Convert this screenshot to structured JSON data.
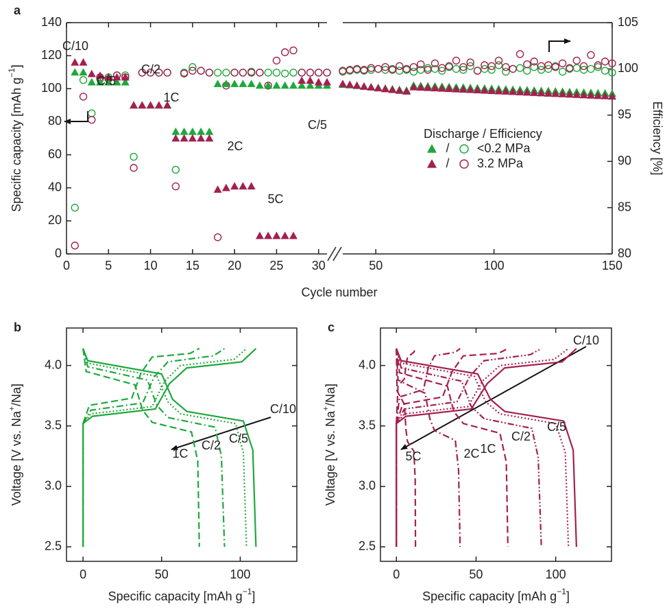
{
  "chart_data": [
    {
      "type": "scatter",
      "panel": "a",
      "xlabel": [
        "Cycle number"
      ],
      "ylabel": [
        "Specific capacity [mAh g",
        "−1",
        "]"
      ],
      "y2label": [
        "Efficiency [%]"
      ],
      "xlim_segments": [
        [
          0,
          31
        ],
        [
          36,
          150
        ]
      ],
      "xticks": [
        0,
        5,
        10,
        15,
        20,
        25,
        30,
        50,
        100,
        150
      ],
      "ylim": [
        0,
        140
      ],
      "yticks": [
        0,
        20,
        40,
        60,
        80,
        100,
        120,
        140
      ],
      "y2lim": [
        80,
        105
      ],
      "y2ticks": [
        80,
        85,
        90,
        95,
        100,
        105
      ],
      "legend_title": "Discharge / Efficiency",
      "legend_separator": "/",
      "annotations": [
        "C/10",
        "C/5",
        "C/2",
        "1C",
        "2C",
        "5C",
        "C/5"
      ],
      "x": [
        1,
        2,
        3,
        4,
        5,
        6,
        7,
        8,
        9,
        10,
        11,
        12,
        13,
        14,
        15,
        16,
        17,
        18,
        19,
        20,
        21,
        22,
        23,
        24,
        25,
        26,
        27,
        28,
        29,
        30,
        31,
        36,
        39,
        42,
        45,
        48,
        51,
        54,
        57,
        60,
        63,
        66,
        69,
        72,
        75,
        78,
        81,
        84,
        87,
        90,
        93,
        96,
        99,
        102,
        105,
        108,
        111,
        114,
        117,
        120,
        123,
        126,
        129,
        132,
        135,
        138,
        141,
        144,
        147,
        150
      ],
      "series": [
        {
          "name": "<0.2 MPa",
          "color": "#1ea83c",
          "discharge": [
            110,
            110,
            104,
            104,
            104,
            104,
            104,
            90,
            90,
            90,
            90,
            90,
            74,
            74,
            74,
            74,
            74,
            103,
            103,
            103,
            103,
            103,
            102,
            102,
            102,
            102,
            102,
            102,
            102,
            102,
            102,
            102.5,
            102.2,
            101.8,
            101.4,
            101,
            100.6,
            100.2,
            99.8,
            99.4,
            99.0,
            102,
            101.8,
            101.6,
            101.5,
            101.3,
            101.1,
            100.9,
            100.8,
            100.6,
            100.4,
            100.2,
            100.1,
            99.9,
            99.7,
            99.5,
            99.4,
            99.2,
            99,
            98.8,
            98.7,
            98.5,
            98.3,
            98.1,
            98,
            97.8,
            97.6,
            97.4,
            97.3,
            97.1
          ],
          "efficiency": [
            85.0,
            98.8,
            95.2,
            98.9,
            99.1,
            99.3,
            99.3,
            90.5,
            99.6,
            99.6,
            99.6,
            99.6,
            89.1,
            99.6,
            100.2,
            99.8,
            99.6,
            99.6,
            99.6,
            99.6,
            99.6,
            99.7,
            99.6,
            99.6,
            99.6,
            99.5,
            99.6,
            99.6,
            99.6,
            99.6,
            99.6,
            99.7,
            99.8,
            99.9,
            99.8,
            99.9,
            100,
            99.9,
            100,
            99.8,
            99.9,
            99.7,
            99.9,
            100.1,
            100,
            99.8,
            100.2,
            100,
            99.9,
            100.3,
            99.8,
            100,
            99.9,
            100.4,
            99.7,
            100,
            100.1,
            99.8,
            100.2,
            99.9,
            100,
            100.3,
            99.7,
            100,
            100.1,
            99.9,
            100,
            100.2,
            99.8,
            99.6
          ]
        },
        {
          "name": "3.2 MPa",
          "color": "#a3204f",
          "discharge": [
            116,
            116,
            109,
            108,
            107,
            107,
            107,
            90,
            90,
            90,
            90,
            90,
            70,
            70,
            70,
            70,
            70,
            39,
            40,
            41,
            41,
            41,
            11,
            11,
            11,
            11,
            11,
            105,
            105,
            104,
            104,
            103,
            102.5,
            102,
            101.4,
            100.9,
            100.4,
            99.9,
            99.4,
            98.9,
            98.4,
            101,
            100.8,
            100.6,
            100.4,
            100.2,
            100,
            99.8,
            99.6,
            99.4,
            99.2,
            99,
            98.8,
            98.6,
            98.4,
            98.2,
            98,
            97.8,
            97.6,
            97.4,
            97.2,
            97,
            96.8,
            96.6,
            96.4,
            96.2,
            96,
            95.8,
            95.6,
            95.4
          ],
          "efficiency": [
            80.9,
            97.0,
            94.5,
            99.1,
            98.9,
            99.3,
            99.1,
            89.3,
            99.6,
            99.6,
            99.6,
            99.6,
            87.3,
            99.5,
            99.8,
            99.8,
            99.6,
            81.8,
            98.2,
            99.6,
            99.6,
            99.6,
            99.6,
            98.2,
            100.9,
            101.8,
            102.0,
            99.6,
            99.6,
            99.6,
            99.6,
            99.8,
            99.9,
            100,
            99.9,
            100.1,
            100,
            100.2,
            99.9,
            100.3,
            100,
            100.2,
            100.5,
            99.9,
            100.6,
            100.1,
            100.3,
            100.9,
            100.2,
            100.7,
            99.8,
            100.4,
            100.3,
            100.9,
            100.2,
            100,
            101.6,
            100.5,
            100.8,
            100.3,
            100.4,
            100.2,
            100.6,
            100.1,
            100.9,
            100.3,
            101.5,
            100.4,
            100.8,
            100.6
          ]
        }
      ]
    },
    {
      "type": "line",
      "panel": "b",
      "color": "#1ea83c",
      "xlabel": [
        "Specific capacity [mAh g",
        "−1",
        "]"
      ],
      "ylabel": [
        "Voltage [V vs. Na",
        "+",
        "/Na]"
      ],
      "xlim": [
        -10.5,
        136
      ],
      "xticks": [
        0,
        50,
        100
      ],
      "ylim": [
        2.38,
        4.31
      ],
      "yticks": [
        2.5,
        {
          "value": 3,
          "label": "3.0"
        },
        3.5,
        {
          "value": 4,
          "label": "4.0"
        }
      ],
      "series": [
        {
          "label": "C/10",
          "dash": "solid",
          "charge": {
            "x": [
              0,
              0,
              6,
              46,
              55,
              66,
              101,
              110
            ],
            "y": [
              2.5,
              3.52,
              3.58,
              3.64,
              3.85,
              3.98,
              4.03,
              4.14
            ]
          },
          "discharge": {
            "x": [
              0,
              3,
              50,
              57,
              66,
              102,
              108,
              110
            ],
            "y": [
              4.14,
              4.04,
              3.93,
              3.72,
              3.62,
              3.54,
              3.3,
              2.5
            ]
          }
        },
        {
          "label": "C/5",
          "dash": "dotted",
          "charge": {
            "x": [
              0,
              0,
              5,
              44,
              52,
              62,
              96,
              104
            ],
            "y": [
              2.5,
              3.52,
              3.6,
              3.66,
              3.87,
              4.0,
              4.05,
              4.14
            ]
          },
          "discharge": {
            "x": [
              0,
              3,
              47,
              54,
              62,
              97,
              102,
              104
            ],
            "y": [
              4.14,
              4.02,
              3.91,
              3.7,
              3.6,
              3.52,
              3.28,
              2.5
            ]
          }
        },
        {
          "label": "C/2",
          "dash": "dashdot",
          "charge": {
            "x": [
              0,
              0,
              5,
              38,
              45,
              54,
              83,
              90
            ],
            "y": [
              2.5,
              3.52,
              3.63,
              3.69,
              3.9,
              4.03,
              4.08,
              4.14
            ]
          },
          "discharge": {
            "x": [
              0,
              3,
              41,
              47,
              54,
              84,
              88,
              90
            ],
            "y": [
              4.14,
              3.99,
              3.88,
              3.67,
              3.57,
              3.49,
              3.25,
              2.5
            ]
          }
        },
        {
          "label": "1C",
          "dash": "dashed",
          "charge": {
            "x": [
              0,
              0,
              4,
              31,
              37,
              44,
              68,
              74
            ],
            "y": [
              2.5,
              3.52,
              3.67,
              3.73,
              3.94,
              4.07,
              4.1,
              4.14
            ]
          },
          "discharge": {
            "x": [
              0,
              2,
              33,
              38,
              44,
              69,
              73,
              74
            ],
            "y": [
              4.14,
              3.95,
              3.84,
              3.63,
              3.53,
              3.45,
              3.21,
              2.5
            ]
          }
        }
      ]
    },
    {
      "type": "line",
      "panel": "c",
      "color": "#a3204f",
      "xlabel": [
        "Specific capacity [mAh g",
        "−1",
        "]"
      ],
      "ylabel": [
        "Voltage [V vs. Na",
        "+",
        "/Na]"
      ],
      "xlim": [
        -10,
        135
      ],
      "xticks": [
        0,
        50,
        100
      ],
      "ylim": [
        2.38,
        4.31
      ],
      "yticks": [
        2.5,
        {
          "value": 3,
          "label": "3.0"
        },
        3.5,
        {
          "value": 4,
          "label": "4.0"
        }
      ],
      "series": [
        {
          "label": "C/10",
          "dash": "solid",
          "charge": {
            "x": [
              0,
              0,
              6,
              47,
              57,
              68,
              104,
              113
            ],
            "y": [
              2.5,
              3.52,
              3.58,
              3.64,
              3.85,
              3.98,
              4.03,
              4.14
            ]
          },
          "discharge": {
            "x": [
              0,
              3,
              51,
              59,
              68,
              105,
              111,
              113
            ],
            "y": [
              4.14,
              4.04,
              3.93,
              3.72,
              3.62,
              3.54,
              3.3,
              2.5
            ]
          }
        },
        {
          "label": "C/5",
          "dash": "dotted",
          "charge": {
            "x": [
              0,
              0,
              5,
              45,
              54,
              65,
              99,
              108
            ],
            "y": [
              2.5,
              3.52,
              3.6,
              3.66,
              3.87,
              4.0,
              4.05,
              4.14
            ]
          },
          "discharge": {
            "x": [
              0,
              3,
              49,
              56,
              65,
              100,
              106,
              108
            ],
            "y": [
              4.14,
              4.02,
              3.91,
              3.7,
              3.6,
              3.52,
              3.28,
              2.5
            ]
          }
        },
        {
          "label": "C/2",
          "dash": "dashdotdot",
          "charge": {
            "x": [
              0,
              0,
              5,
              38,
              46,
              55,
              84,
              91
            ],
            "y": [
              2.5,
              3.52,
              3.64,
              3.7,
              3.91,
              4.04,
              4.09,
              4.14
            ]
          },
          "discharge": {
            "x": [
              0,
              3,
              41,
              47,
              55,
              85,
              89,
              91
            ],
            "y": [
              4.14,
              3.98,
              3.87,
              3.66,
              3.56,
              3.48,
              3.24,
              2.5
            ]
          }
        },
        {
          "label": "1C",
          "dash": "dashed",
          "charge": {
            "x": [
              0,
              0,
              4,
              29,
              35,
              42,
              64,
              70
            ],
            "y": [
              2.5,
              3.52,
              3.68,
              3.74,
              3.95,
              4.08,
              4.1,
              4.14
            ]
          },
          "discharge": {
            "x": [
              0,
              2,
              32,
              36,
              42,
              65,
              69,
              70
            ],
            "y": [
              4.14,
              3.94,
              3.83,
              3.62,
              3.52,
              3.44,
              3.2,
              2.5
            ]
          }
        },
        {
          "label": "2C",
          "dash": "dashdot",
          "charge": {
            "x": [
              0,
              0,
              2,
              17,
              20,
              24,
              37,
              40
            ],
            "y": [
              2.5,
              3.52,
              3.74,
              3.8,
              3.98,
              4.08,
              4.11,
              4.14
            ]
          },
          "discharge": {
            "x": [
              0,
              1,
              18,
              21,
              24,
              37,
              39,
              40
            ],
            "y": [
              4.14,
              3.88,
              3.77,
              3.56,
              3.46,
              3.38,
              3.14,
              2.5
            ]
          }
        },
        {
          "label": "5C",
          "dash": "dashed",
          "charge": {
            "x": [
              0,
              0,
              1,
              5,
              6,
              7,
              11,
              12
            ],
            "y": [
              2.5,
              3.52,
              3.83,
              3.89,
              4.0,
              4.07,
              4.11,
              4.14
            ]
          },
          "discharge": {
            "x": [
              0,
              0.4,
              5,
              6,
              7,
              11,
              11.8,
              12
            ],
            "y": [
              4.14,
              3.79,
              3.68,
              3.47,
              3.37,
              3.29,
              3.05,
              2.5
            ]
          }
        }
      ]
    }
  ]
}
